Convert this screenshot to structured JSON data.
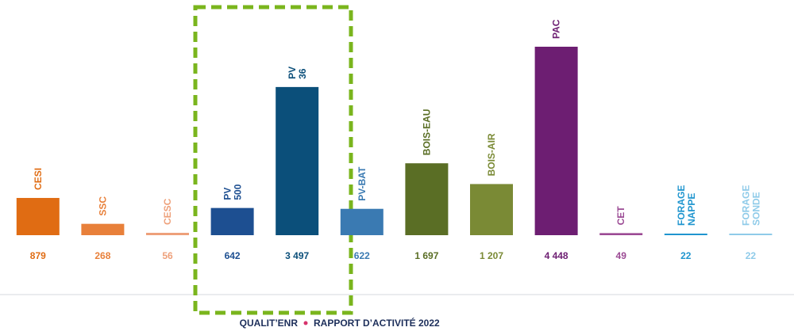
{
  "chart_data": {
    "type": "bar",
    "categories": [
      "CESI",
      "SSC",
      "CESC",
      "PV 500",
      "PV 36",
      "PV-BAT",
      "BOIS-EAU",
      "BOIS-AIR",
      "PAC",
      "CET",
      "FORAGE NAPPE",
      "FORAGE SONDE"
    ],
    "values": [
      879,
      268,
      56,
      642,
      3497,
      622,
      1697,
      1207,
      4448,
      49,
      22,
      22
    ],
    "value_labels": [
      "879",
      "268",
      "56",
      "642",
      "3 497",
      "622",
      "1 697",
      "1 207",
      "4 448",
      "49",
      "22",
      "22"
    ],
    "colors": [
      "#e06c13",
      "#e8803a",
      "#eea07a",
      "#1d4f91",
      "#0b4f7a",
      "#3a7ab2",
      "#5a6e25",
      "#7a8a35",
      "#6d1e72",
      "#9b4a94",
      "#1f95cf",
      "#8fcbe9"
    ]
  },
  "footer": {
    "brand": "QUALIT’ENR",
    "text": "RAPPORT D’ACTIVITÉ 2022"
  }
}
